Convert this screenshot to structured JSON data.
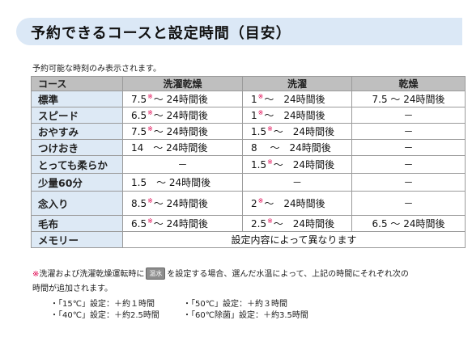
{
  "title": "予約できるコースと設定時間（目安）",
  "note_top": "予約可能な時刻のみ表示されます。",
  "table": {
    "headers": [
      "コース",
      "洗濯乾燥",
      "洗濯",
      "乾燥"
    ],
    "rows": [
      {
        "course": "標準",
        "wd": [
          "7.5",
          "～ 24時間後"
        ],
        "w": [
          "1",
          "～　24時間後"
        ],
        "d": "7.5 ～ 24時間後",
        "h": 20
      },
      {
        "course": "スピード",
        "wd": [
          "6.5",
          "～ 24時間後"
        ],
        "w": [
          "1",
          "～　24時間後"
        ],
        "d": "－",
        "h": 20
      },
      {
        "course": "おやすみ",
        "wd": [
          "7.5",
          "～ 24時間後"
        ],
        "w": [
          "1.5",
          "～　24時間後"
        ],
        "d": "－",
        "h": 20
      },
      {
        "course": "つけおき",
        "wd": [
          "",
          "14　～ 24時間後"
        ],
        "w": [
          "",
          "8　 ～　24時間後"
        ],
        "d": "－",
        "h": 20
      },
      {
        "course": "とっても柔らか",
        "wd": [
          "",
          "－"
        ],
        "w": [
          "1.5",
          "～　24時間後"
        ],
        "d": "－",
        "h": 22
      },
      {
        "course": "少量60分",
        "wd": [
          "",
          "1.5　～ 24時間後"
        ],
        "w": [
          "",
          "－"
        ],
        "d": "－",
        "h": 22
      },
      {
        "course": "念入り",
        "wd": [
          "8.5",
          "～ 24時間後"
        ],
        "w": [
          "2",
          "～　24時間後"
        ],
        "d": "－",
        "h": 30
      },
      {
        "course": "毛布",
        "wd": [
          "6.5",
          "～ 24時間後"
        ],
        "w": [
          "2.5",
          "～　24時間後"
        ],
        "d": "6.5 ～ 24時間後",
        "h": 20
      }
    ],
    "memory": {
      "course": "メモリー",
      "text": "設定内容によって異なります"
    },
    "star": "※"
  },
  "footnote": {
    "mark": "※",
    "text1": "洗濯および洗濯乾燥運転時に",
    "key": "温水",
    "text2": "を設定する場合、選んだ水温によって、上記の時間にそれぞれ次の",
    "line2": "時間が追加されます。",
    "items": [
      "・「15℃」設定：＋約１時間",
      "・「50℃」設定：＋約３時間",
      "・「40℃」設定：＋約2.5時間",
      "・「60℃除菌」設定：＋約3.5時間"
    ]
  },
  "colors": {
    "title_bg": "#dbe8f6",
    "header_bg": "#bfbfbf",
    "label_bg": "#dde9f5",
    "star": "#e0004d"
  }
}
